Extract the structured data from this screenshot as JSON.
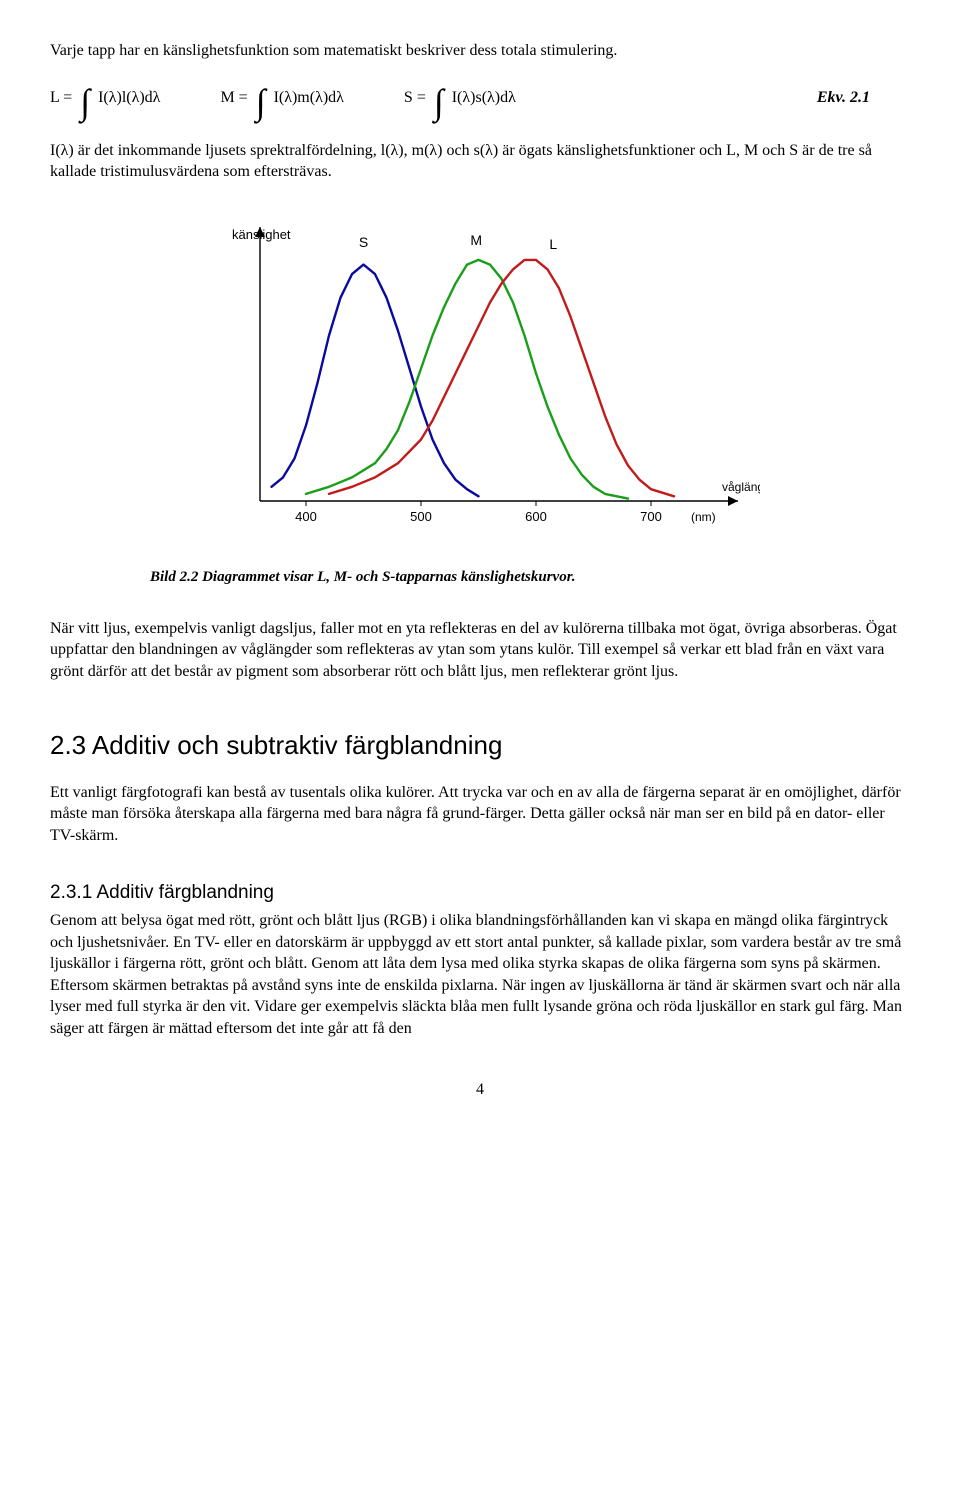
{
  "para1": "Varje tapp har en känslighetsfunktion som matematiskt beskriver dess totala stimulering.",
  "equations": {
    "L_lhs": "L = ",
    "L_int": "I(λ)l(λ)dλ",
    "M_lhs": "M = ",
    "M_int": "I(λ)m(λ)dλ",
    "S_lhs": "S = ",
    "S_int": "I(λ)s(λ)dλ",
    "label": "Ekv. 2.1"
  },
  "para2": "I(λ) är det inkommande ljusets sprektralfördelning, l(λ), m(λ) och s(λ) är ögats känslighetsfunktioner och L, M och S är de tre så kallade tristimulusvärdena som eftersträvas.",
  "chart": {
    "type": "line",
    "y_label": "känslighet",
    "y_label_fontsize": 13,
    "y_label_color": "#000000",
    "x_label_unit": "(nm)",
    "x_label_right": "våglängd",
    "x_ticks": [
      400,
      500,
      600,
      700
    ],
    "x_range": [
      360,
      760
    ],
    "y_range": [
      0,
      110
    ],
    "axis_color": "#000000",
    "axis_width": 1.4,
    "background": "#ffffff",
    "series_labels": {
      "S": "S",
      "M": "M",
      "L": "L"
    },
    "label_fontsize": 14,
    "series": {
      "S": {
        "color": "#0a0a9e",
        "width": 2.4,
        "points": [
          [
            370,
            6
          ],
          [
            380,
            10
          ],
          [
            390,
            18
          ],
          [
            400,
            32
          ],
          [
            410,
            50
          ],
          [
            420,
            70
          ],
          [
            430,
            86
          ],
          [
            440,
            96
          ],
          [
            450,
            100
          ],
          [
            460,
            96
          ],
          [
            470,
            86
          ],
          [
            480,
            72
          ],
          [
            490,
            56
          ],
          [
            500,
            40
          ],
          [
            510,
            26
          ],
          [
            520,
            16
          ],
          [
            530,
            9
          ],
          [
            540,
            5
          ],
          [
            550,
            2
          ]
        ]
      },
      "M": {
        "color": "#1a9e1a",
        "width": 2.4,
        "points": [
          [
            400,
            3
          ],
          [
            420,
            6
          ],
          [
            440,
            10
          ],
          [
            460,
            16
          ],
          [
            470,
            22
          ],
          [
            480,
            30
          ],
          [
            490,
            42
          ],
          [
            500,
            56
          ],
          [
            510,
            70
          ],
          [
            520,
            82
          ],
          [
            530,
            92
          ],
          [
            540,
            100
          ],
          [
            550,
            102
          ],
          [
            560,
            100
          ],
          [
            570,
            94
          ],
          [
            580,
            84
          ],
          [
            590,
            70
          ],
          [
            600,
            54
          ],
          [
            610,
            40
          ],
          [
            620,
            28
          ],
          [
            630,
            18
          ],
          [
            640,
            11
          ],
          [
            650,
            6
          ],
          [
            660,
            3
          ],
          [
            680,
            1
          ]
        ]
      },
      "L": {
        "color": "#c21b1b",
        "width": 2.4,
        "points": [
          [
            420,
            3
          ],
          [
            440,
            6
          ],
          [
            460,
            10
          ],
          [
            480,
            16
          ],
          [
            500,
            26
          ],
          [
            510,
            34
          ],
          [
            520,
            44
          ],
          [
            530,
            54
          ],
          [
            540,
            64
          ],
          [
            550,
            74
          ],
          [
            560,
            84
          ],
          [
            570,
            92
          ],
          [
            580,
            98
          ],
          [
            590,
            102
          ],
          [
            600,
            102
          ],
          [
            610,
            98
          ],
          [
            620,
            90
          ],
          [
            630,
            78
          ],
          [
            640,
            64
          ],
          [
            650,
            50
          ],
          [
            660,
            36
          ],
          [
            670,
            24
          ],
          [
            680,
            15
          ],
          [
            690,
            9
          ],
          [
            700,
            5
          ],
          [
            720,
            2
          ]
        ]
      }
    }
  },
  "caption": "Bild 2.2 Diagrammet visar L, M- och S-tapparnas känslighetskurvor.",
  "para3": "När vitt ljus, exempelvis vanligt dagsljus, faller mot en yta reflekteras en del av kulörerna tillbaka mot ögat, övriga absorberas. Ögat uppfattar den blandningen av våglängder som reflekteras av ytan som ytans kulör. Till exempel så verkar ett blad från en växt vara grönt därför att det består av pigment som absorberar rött och blått ljus, men reflekterar grönt ljus.",
  "section_2_3_title": "2.3   Additiv och subtraktiv färgblandning",
  "para4": "Ett vanligt färgfotografi kan bestå av tusentals olika kulörer. Att trycka var och en av alla de färgerna separat är en omöjlighet, därför måste man försöka återskapa alla färgerna med bara några få grund-färger. Detta gäller också när man ser en bild på en dator- eller TV-skärm.",
  "subsection_2_3_1_title": "2.3.1   Additiv färgblandning",
  "para5": "Genom att belysa ögat med rött, grönt och blått ljus (RGB) i olika blandningsförhållanden kan vi skapa en mängd olika färgintryck och ljushetsnivåer. En TV- eller en datorskärm är uppbyggd av ett stort antal punkter, så kallade pixlar, som vardera består av tre små ljuskällor i färgerna rött, grönt och blått. Genom att låta dem lysa med olika styrka skapas de olika färgerna som syns på skärmen. Eftersom skärmen betraktas på avstånd syns inte de enskilda pixlarna. När ingen av ljuskällorna är tänd är skärmen svart och när alla lyser med full styrka är den vit. Vidare ger exempelvis släckta blåa men fullt lysande gröna och röda ljuskällor en stark gul färg. Man säger att färgen är mättad eftersom det inte går att få den",
  "page_number": "4"
}
